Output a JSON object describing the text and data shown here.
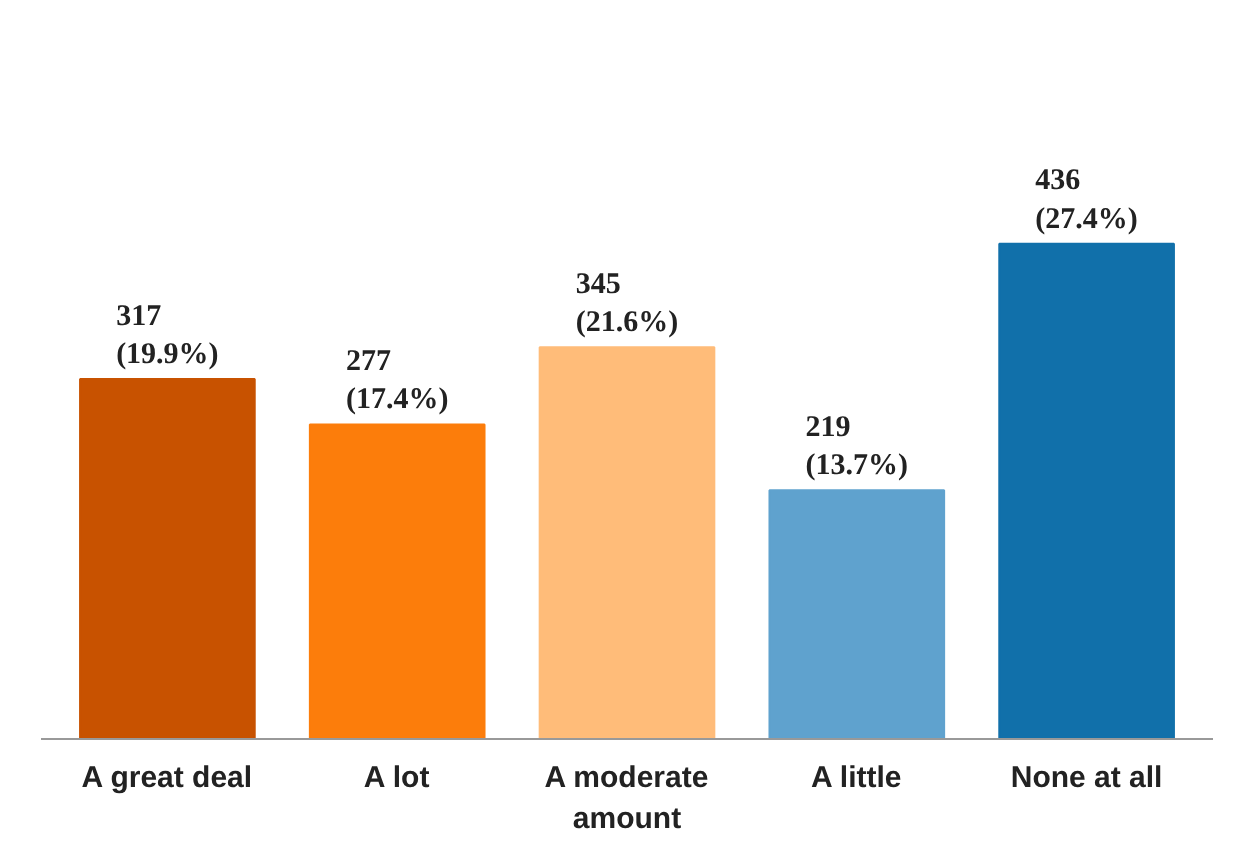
{
  "chart_data": {
    "type": "bar",
    "categories": [
      "A great deal",
      "A lot",
      "A moderate amount",
      "A little",
      "None at all"
    ],
    "values": [
      317,
      277,
      345,
      219,
      436
    ],
    "colors": [
      "#c85200",
      "#fc7d0b",
      "#ffbc79",
      "#5fa2ce",
      "#1170aa"
    ],
    "value_labels": [
      "317\n(19.9%)",
      "277\n(17.4%)",
      "345\n(21.6%)",
      "219\n(13.7%)",
      "436\n(27.4%)"
    ],
    "grid": false
  }
}
